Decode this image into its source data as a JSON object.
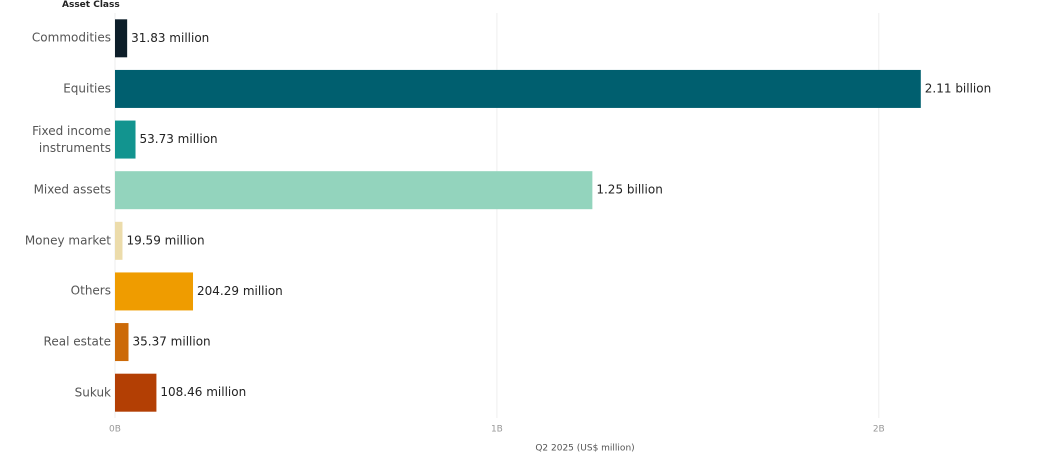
{
  "chart_data": {
    "type": "bar",
    "orientation": "horizontal",
    "category_header": "Asset Class",
    "x_label": "Q2 2025 (US$ million)",
    "categories": [
      "Commodities",
      "Equities",
      "Fixed income instruments",
      "Mixed assets",
      "Money market",
      "Others",
      "Real estate",
      "Sukuk"
    ],
    "values": [
      31.83,
      2110,
      53.73,
      1250,
      19.59,
      204.29,
      35.37,
      108.46
    ],
    "value_labels": [
      "31.83 million",
      "2.11 billion",
      "53.73 million",
      "1.25 billion",
      "19.59 million",
      "204.29 million",
      "35.37 million",
      "108.46 million"
    ],
    "colors": [
      "#0d1e29",
      "#005f6f",
      "#12948f",
      "#93d4bd",
      "#ecdcab",
      "#ef9c00",
      "#cc6a08",
      "#b33f04"
    ],
    "xlim": [
      0,
      2430
    ],
    "xticks": [
      {
        "value": 0,
        "label": "0B"
      },
      {
        "value": 1000,
        "label": "1B"
      },
      {
        "value": 2000,
        "label": "2B"
      }
    ],
    "grid": true
  }
}
